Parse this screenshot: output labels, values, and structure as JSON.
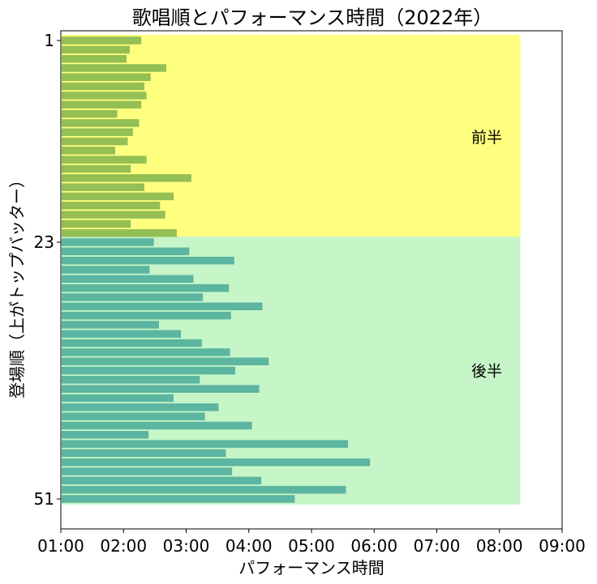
{
  "chart_data": {
    "type": "bar",
    "orientation": "horizontal",
    "title": "歌唱順とパフォーマンス時間（2022年）",
    "xlabel": "パフォーマンス時間",
    "ylabel": "登場順（上がトップバッター）",
    "xlim": [
      "01:00",
      "09:00"
    ],
    "x_ticks": [
      "01:00",
      "02:00",
      "03:00",
      "04:00",
      "05:00",
      "06:00",
      "07:00",
      "08:00",
      "09:00"
    ],
    "y_ticks": [
      "1",
      "23",
      "51"
    ],
    "groups": [
      {
        "label": "前半",
        "from": 1,
        "to": 22,
        "band_color": "#ffff7f",
        "bar_color": "#93bf55"
      },
      {
        "label": "後半",
        "from": 23,
        "to": 51,
        "band_color": "#c6f5c8",
        "bar_color": "#5bb5a0"
      }
    ],
    "orders": [
      1,
      2,
      3,
      4,
      5,
      6,
      7,
      8,
      9,
      10,
      11,
      12,
      13,
      14,
      15,
      16,
      17,
      18,
      19,
      20,
      21,
      22,
      23,
      24,
      25,
      26,
      27,
      28,
      29,
      30,
      31,
      32,
      33,
      34,
      35,
      36,
      37,
      38,
      39,
      40,
      41,
      42,
      43,
      44,
      45,
      46,
      47,
      48,
      49,
      50,
      51
    ],
    "durations": [
      "02:17",
      "02:06",
      "02:03",
      "02:41",
      "02:26",
      "02:20",
      "02:22",
      "02:17",
      "01:54",
      "02:15",
      "02:09",
      "02:04",
      "01:52",
      "02:22",
      "02:07",
      "03:05",
      "02:20",
      "02:48",
      "02:35",
      "02:40",
      "02:07",
      "02:51",
      "02:29",
      "03:03",
      "03:46",
      "02:25",
      "03:07",
      "03:41",
      "03:16",
      "04:13",
      "03:43",
      "02:34",
      "02:55",
      "03:15",
      "03:42",
      "04:19",
      "03:47",
      "03:13",
      "04:10",
      "02:48",
      "03:31",
      "03:18",
      "04:03",
      "02:24",
      "05:35",
      "03:38",
      "05:56",
      "03:44",
      "04:12",
      "05:33",
      "04:44"
    ]
  }
}
